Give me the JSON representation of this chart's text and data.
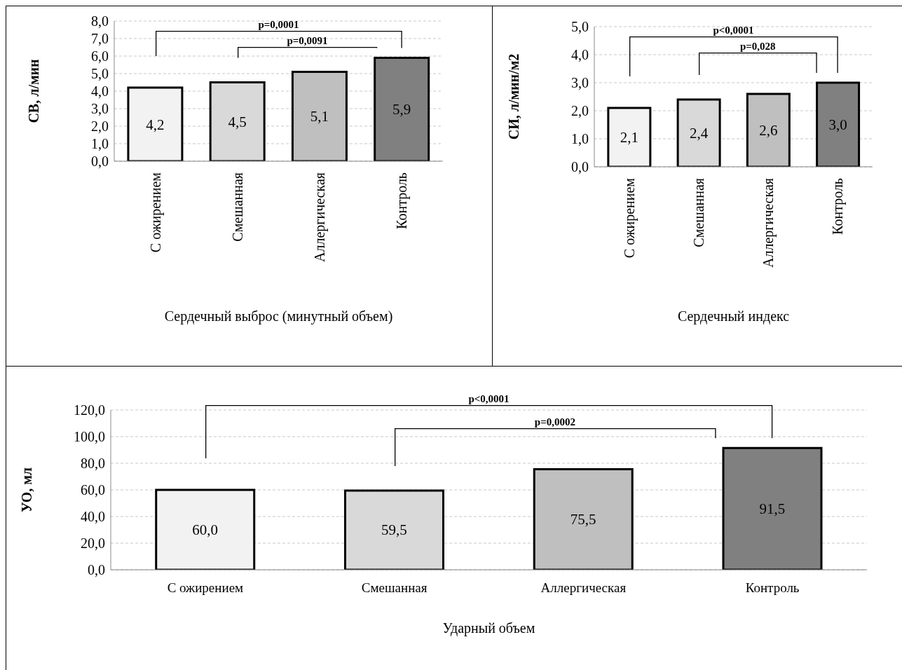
{
  "chart_data": [
    {
      "type": "bar",
      "xlabel": "Сердечный выброс (минутный объем)",
      "ylabel": "СВ, л/мин",
      "categories": [
        "С ожирением",
        "Смешанная",
        "Аллергическая",
        "Контроль"
      ],
      "values": [
        4.2,
        4.5,
        5.1,
        5.9
      ],
      "value_labels": [
        "4,2",
        "4,5",
        "5,1",
        "5,9"
      ],
      "colors": [
        "#f2f2f2",
        "#d9d9d9",
        "#bfbfbf",
        "#808080"
      ],
      "ylim": [
        0,
        8
      ],
      "yticks": [
        {
          "value": 0,
          "label": "0,0"
        },
        {
          "value": 1,
          "label": "1,0"
        },
        {
          "value": 2,
          "label": "2,0"
        },
        {
          "value": 3,
          "label": "3,0"
        },
        {
          "value": 4,
          "label": "4,0"
        },
        {
          "value": 5,
          "label": "5,0"
        },
        {
          "value": 6,
          "label": "6,0"
        },
        {
          "value": 7,
          "label": "7,0"
        },
        {
          "value": 8,
          "label": "8,0"
        }
      ],
      "grid": "y",
      "annotations": [
        "p=0,0001",
        "p=0,0091"
      ]
    },
    {
      "type": "bar",
      "xlabel": "Сердечный индекс",
      "ylabel": "СИ, л/мин/м2",
      "categories": [
        "С ожирением",
        "Смешанная",
        "Аллергическая",
        "Контроль"
      ],
      "values": [
        2.1,
        2.4,
        2.6,
        3.0
      ],
      "value_labels": [
        "2,1",
        "2,4",
        "2,6",
        "3,0"
      ],
      "colors": [
        "#f2f2f2",
        "#d9d9d9",
        "#bfbfbf",
        "#808080"
      ],
      "ylim": [
        0,
        5
      ],
      "yticks": [
        {
          "value": 0,
          "label": "0,0"
        },
        {
          "value": 1,
          "label": "1,0"
        },
        {
          "value": 2,
          "label": "2,0"
        },
        {
          "value": 3,
          "label": "3,0"
        },
        {
          "value": 4,
          "label": "4,0"
        },
        {
          "value": 5,
          "label": "5,0"
        }
      ],
      "grid": "y",
      "annotations": [
        "p<0,0001",
        "p=0,028"
      ]
    },
    {
      "type": "bar",
      "xlabel": "Ударный объем",
      "ylabel": "УО, мл",
      "categories": [
        "С ожирением",
        "Смешанная",
        "Аллергическая",
        "Контроль"
      ],
      "values": [
        60.0,
        59.5,
        75.5,
        91.5
      ],
      "value_labels": [
        "60,0",
        "59,5",
        "75,5",
        "91,5"
      ],
      "colors": [
        "#f2f2f2",
        "#d9d9d9",
        "#bfbfbf",
        "#808080"
      ],
      "ylim": [
        0,
        120
      ],
      "yticks": [
        {
          "value": 0,
          "label": "0,0"
        },
        {
          "value": 20,
          "label": "20,0"
        },
        {
          "value": 40,
          "label": "40,0"
        },
        {
          "value": 60,
          "label": "60,0"
        },
        {
          "value": 80,
          "label": "80,0"
        },
        {
          "value": 100,
          "label": "100,0"
        },
        {
          "value": 120,
          "label": "120,0"
        }
      ],
      "grid": "y",
      "annotations": [
        "p<0,0001",
        "p=0,0002"
      ]
    }
  ]
}
